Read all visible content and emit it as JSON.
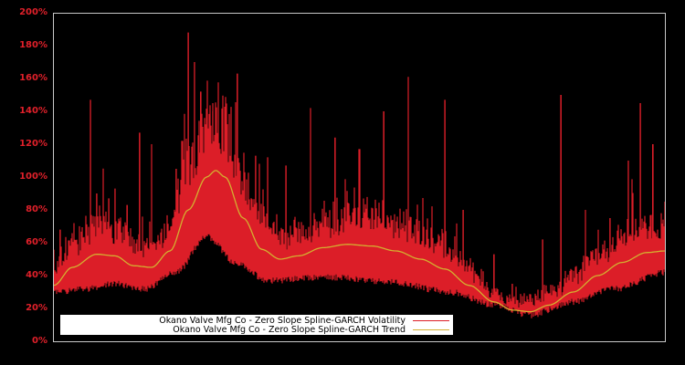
{
  "chart_data": {
    "type": "line",
    "title": "",
    "xlabel": "",
    "ylabel": "",
    "ylim": [
      0,
      200
    ],
    "yticks": [
      "0%",
      "20%",
      "40%",
      "60%",
      "80%",
      "100%",
      "120%",
      "140%",
      "160%",
      "180%",
      "200%"
    ],
    "grid": false,
    "background": "#000000",
    "frame_color": "#c8c8c8",
    "tick_color": "#e0202a",
    "legend_position": "lower-left",
    "series": [
      {
        "name": "Okano Valve Mfg Co - Zero Slope Spline-GARCH Volatility",
        "color": "#dc1e28",
        "base_envelope_pct": [
          [
            0,
            28
          ],
          [
            0.05,
            30
          ],
          [
            0.1,
            33
          ],
          [
            0.15,
            30
          ],
          [
            0.2,
            40
          ],
          [
            0.25,
            62
          ],
          [
            0.3,
            45
          ],
          [
            0.35,
            35
          ],
          [
            0.45,
            37
          ],
          [
            0.55,
            34
          ],
          [
            0.65,
            28
          ],
          [
            0.72,
            20
          ],
          [
            0.78,
            14
          ],
          [
            0.85,
            22
          ],
          [
            0.92,
            30
          ],
          [
            1.0,
            40
          ]
        ],
        "spikes_pct": [
          [
            0.01,
            68
          ],
          [
            0.06,
            147
          ],
          [
            0.07,
            90
          ],
          [
            0.09,
            87
          ],
          [
            0.1,
            93
          ],
          [
            0.12,
            83
          ],
          [
            0.14,
            127
          ],
          [
            0.16,
            120
          ],
          [
            0.2,
            105
          ],
          [
            0.21,
            122
          ],
          [
            0.22,
            188
          ],
          [
            0.23,
            170
          ],
          [
            0.24,
            152
          ],
          [
            0.26,
            140
          ],
          [
            0.27,
            120
          ],
          [
            0.3,
            163
          ],
          [
            0.33,
            113
          ],
          [
            0.35,
            112
          ],
          [
            0.38,
            107
          ],
          [
            0.42,
            142
          ],
          [
            0.46,
            124
          ],
          [
            0.5,
            117
          ],
          [
            0.54,
            140
          ],
          [
            0.58,
            161
          ],
          [
            0.64,
            147
          ],
          [
            0.67,
            80
          ],
          [
            0.72,
            53
          ],
          [
            0.75,
            35
          ],
          [
            0.8,
            62
          ],
          [
            0.83,
            150
          ],
          [
            0.87,
            80
          ],
          [
            0.91,
            75
          ],
          [
            0.94,
            110
          ],
          [
            0.96,
            145
          ],
          [
            0.98,
            120
          ],
          [
            1.0,
            85
          ]
        ]
      },
      {
        "name": "Okano Valve Mfg Co - Zero Slope Spline-GARCH Trend",
        "color": "#d4b030",
        "points_pct": [
          [
            0,
            34
          ],
          [
            0.03,
            45
          ],
          [
            0.07,
            53
          ],
          [
            0.1,
            52
          ],
          [
            0.13,
            46
          ],
          [
            0.16,
            45
          ],
          [
            0.19,
            55
          ],
          [
            0.22,
            80
          ],
          [
            0.25,
            100
          ],
          [
            0.265,
            104
          ],
          [
            0.28,
            100
          ],
          [
            0.31,
            75
          ],
          [
            0.34,
            56
          ],
          [
            0.37,
            50
          ],
          [
            0.4,
            52
          ],
          [
            0.44,
            57
          ],
          [
            0.48,
            59
          ],
          [
            0.52,
            58
          ],
          [
            0.56,
            55
          ],
          [
            0.6,
            50
          ],
          [
            0.64,
            44
          ],
          [
            0.68,
            34
          ],
          [
            0.72,
            24
          ],
          [
            0.75,
            19
          ],
          [
            0.78,
            18
          ],
          [
            0.81,
            22
          ],
          [
            0.85,
            30
          ],
          [
            0.89,
            40
          ],
          [
            0.93,
            48
          ],
          [
            0.97,
            54
          ],
          [
            1.0,
            55
          ]
        ]
      }
    ]
  },
  "legend": {
    "items": [
      {
        "label": "Okano Valve Mfg Co - Zero Slope Spline-GARCH Volatility",
        "color": "#dc1e28"
      },
      {
        "label": "Okano Valve Mfg Co - Zero Slope Spline-GARCH Trend",
        "color": "#d4b030"
      }
    ]
  }
}
